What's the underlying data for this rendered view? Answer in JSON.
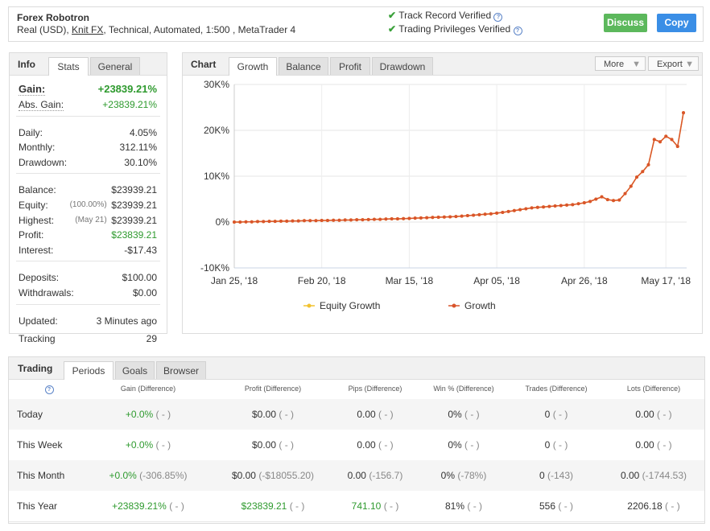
{
  "header": {
    "title": "Forex Robotron",
    "subtitle_start": "Real (USD),",
    "broker": "Knit FX",
    "subtitle_end": ", Technical, Automated, 1:500 , MetaTrader 4",
    "verified": [
      "Track Record Verified",
      "Trading Privileges Verified"
    ],
    "help_icon": "?",
    "buttons": [
      "Discuss",
      "Copy"
    ]
  },
  "info": {
    "tabs": [
      "Info",
      "Stats",
      "General"
    ],
    "groups": [
      [
        {
          "label": "Gain:",
          "value": "+23839.21%",
          "color": "#2e9a2e"
        },
        {
          "label": "Abs. Gain:",
          "value": "+23839.21%",
          "color": "#2e9a2e"
        }
      ],
      [
        {
          "label": "Daily:",
          "value": "4.05%"
        },
        {
          "label": "Monthly:",
          "value": "312.11%"
        },
        {
          "label": "Drawdown:",
          "value": "30.10%"
        }
      ],
      [
        {
          "label": "Balance:",
          "value": "$23939.21"
        },
        {
          "label": "Equity:",
          "note": "(100.00%)",
          "value": "$23939.21"
        },
        {
          "label": "Highest:",
          "note": "(May 21)",
          "value": "$23939.21"
        },
        {
          "label": "Profit:",
          "value": "$23839.21",
          "color": "#2e9a2e"
        },
        {
          "label": "Interest:",
          "value": "-$17.43"
        }
      ],
      [
        {
          "label": "Deposits:",
          "value": "$100.00"
        },
        {
          "label": "Withdrawals:",
          "value": "$0.00"
        }
      ],
      [
        {
          "label": "Updated:",
          "value": "3 Minutes ago"
        },
        {
          "label": "Tracking",
          "value": "29"
        }
      ]
    ]
  },
  "chart_panel": {
    "tabs": [
      "Chart",
      "Growth",
      "Balance",
      "Profit",
      "Drawdown"
    ],
    "menus": [
      "More",
      "Export"
    ]
  },
  "chart_data": {
    "type": "line",
    "categories": [
      "Jan 25, '18",
      null,
      null,
      null,
      null,
      null,
      null,
      null,
      null,
      null,
      null,
      null,
      null,
      null,
      null,
      "Feb 20, '18",
      null,
      null,
      null,
      null,
      null,
      null,
      null,
      null,
      null,
      null,
      null,
      null,
      null,
      null,
      "Mar 15, '18",
      null,
      null,
      null,
      null,
      null,
      null,
      null,
      null,
      null,
      null,
      null,
      null,
      null,
      null,
      "Apr 05, '18",
      null,
      null,
      null,
      null,
      null,
      null,
      null,
      null,
      null,
      null,
      null,
      null,
      null,
      null,
      "Apr 26, '18",
      null,
      null,
      null,
      null,
      null,
      null,
      null,
      null,
      null,
      null,
      null,
      null,
      null,
      "May 17, '18",
      null,
      null,
      null
    ],
    "series": [
      {
        "name": "Equity Growth",
        "color": "#f2c230",
        "values": [
          0,
          0,
          50,
          50,
          100,
          100,
          150,
          150,
          200,
          200,
          250,
          250,
          300,
          300,
          300,
          350,
          350,
          400,
          400,
          450,
          450,
          500,
          500,
          550,
          600,
          600,
          650,
          700,
          700,
          750,
          800,
          850,
          900,
          950,
          1000,
          1050,
          1100,
          1150,
          1200,
          1300,
          1400,
          1500,
          1600,
          1700,
          1800,
          1950,
          2100,
          2300,
          2500,
          2700,
          2900,
          3100,
          3200,
          3300,
          3400,
          3500,
          3600,
          3700,
          3800,
          4000,
          4200,
          4500,
          5000,
          5500,
          4900,
          4700,
          4800,
          6200,
          7800,
          9800,
          11000,
          12500,
          18000,
          17500,
          18700,
          18000,
          16500,
          23839.21
        ]
      },
      {
        "name": "Growth",
        "color": "#d9542b",
        "values": [
          0,
          0,
          50,
          50,
          100,
          100,
          150,
          150,
          200,
          200,
          250,
          250,
          300,
          300,
          300,
          350,
          350,
          400,
          400,
          450,
          450,
          500,
          500,
          550,
          600,
          600,
          650,
          700,
          700,
          750,
          800,
          850,
          900,
          950,
          1000,
          1050,
          1100,
          1150,
          1200,
          1300,
          1400,
          1500,
          1600,
          1700,
          1800,
          1950,
          2100,
          2300,
          2500,
          2700,
          2900,
          3100,
          3200,
          3300,
          3400,
          3500,
          3600,
          3700,
          3800,
          4000,
          4200,
          4500,
          5000,
          5500,
          4900,
          4700,
          4800,
          6200,
          7800,
          9800,
          11000,
          12500,
          18000,
          17500,
          18700,
          18000,
          16500,
          23839.21
        ]
      }
    ],
    "ylim": [
      -10000,
      30000
    ],
    "yticks": [
      {
        "value": -10000,
        "label": "-10K%"
      },
      {
        "value": 0,
        "label": "0%"
      },
      {
        "value": 10000,
        "label": "10K%"
      },
      {
        "value": 20000,
        "label": "20K%"
      },
      {
        "value": 30000,
        "label": "30K%"
      }
    ],
    "grid": true
  },
  "trading": {
    "tabs": [
      "Trading",
      "Periods",
      "Goals",
      "Browser"
    ],
    "columns": [
      "?",
      "Gain (Difference)",
      "Profit (Difference)",
      "Pips (Difference)",
      "Win % (Difference)",
      "Trades (Difference)",
      "Lots (Difference)"
    ],
    "rows": [
      {
        "label": "Today",
        "cells": [
          {
            "value": "+0.0%",
            "diff": "( - )",
            "color": "#2e9a2e"
          },
          {
            "value": "$0.00",
            "diff": "( - )"
          },
          {
            "value": "0.00",
            "diff": "( - )"
          },
          {
            "value": "0%",
            "diff": "( - )"
          },
          {
            "value": "0",
            "diff": "( - )"
          },
          {
            "value": "0.00",
            "diff": "( - )"
          }
        ]
      },
      {
        "label": "This Week",
        "cells": [
          {
            "value": "+0.0%",
            "diff": "( - )",
            "color": "#2e9a2e"
          },
          {
            "value": "$0.00",
            "diff": "( - )"
          },
          {
            "value": "0.00",
            "diff": "( - )"
          },
          {
            "value": "0%",
            "diff": "( - )"
          },
          {
            "value": "0",
            "diff": "( - )"
          },
          {
            "value": "0.00",
            "diff": "( - )"
          }
        ]
      },
      {
        "label": "This Month",
        "cells": [
          {
            "value": "+0.0%",
            "diff": "(-306.85%)",
            "color": "#2e9a2e"
          },
          {
            "value": "$0.00",
            "diff": "(-$18055.20)"
          },
          {
            "value": "0.00",
            "diff": "(-156.7)"
          },
          {
            "value": "0%",
            "diff": "(-78%)"
          },
          {
            "value": "0",
            "diff": "(-143)"
          },
          {
            "value": "0.00",
            "diff": "(-1744.53)"
          }
        ]
      },
      {
        "label": "This Year",
        "cells": [
          {
            "value": "+23839.21%",
            "diff": "( - )",
            "color": "#2e9a2e"
          },
          {
            "value": "$23839.21",
            "diff": "( - )",
            "color": "#2e9a2e"
          },
          {
            "value": "741.10",
            "diff": "( - )",
            "color": "#2e9a2e"
          },
          {
            "value": "81%",
            "diff": "( - )"
          },
          {
            "value": "556",
            "diff": "( - )"
          },
          {
            "value": "2206.18",
            "diff": "( - )"
          }
        ]
      }
    ]
  }
}
